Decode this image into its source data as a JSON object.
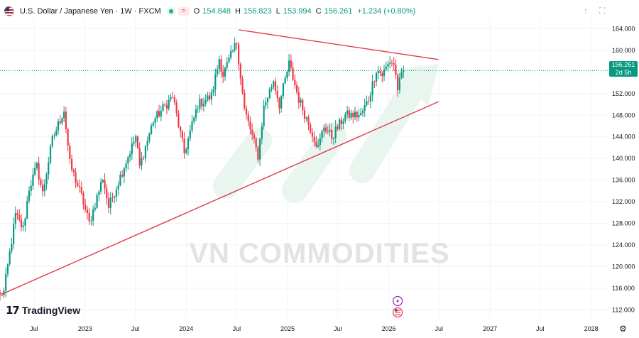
{
  "header": {
    "title": "U.S. Dollar / Japanese Yen · 1W · FXCM",
    "approx_symbol": "≈",
    "open_label": "O",
    "open": "154.848",
    "high_label": "H",
    "high": "156.823",
    "low_label": "L",
    "low": "153.994",
    "close_label": "C",
    "close": "156.261",
    "change": "+1.234 (+0.80%)"
  },
  "price_tag": {
    "price": "156.261",
    "countdown": "2d 5h"
  },
  "watermark": "VN COMMODITIES",
  "logo": {
    "mark": "17",
    "text": "TradingView"
  },
  "colors": {
    "up": "#089981",
    "down": "#f23645",
    "trendline": "#e03a4a",
    "arrow": "#e8f6ef",
    "grid": "#f0f3fa",
    "axis_text": "#131722"
  },
  "icons": {
    "flag": "us-japan-flag-icon",
    "settings": "gear-icon",
    "event1": "lightning-icon",
    "event2": "us-flag-event-icon"
  },
  "chart_data": {
    "type": "candlestick",
    "title": "U.S. Dollar / Japanese Yen · 1W · FXCM",
    "ylim": [
      110.6,
      165.9
    ],
    "yticks": [
      112,
      116,
      120,
      124,
      128,
      132,
      136,
      140,
      144,
      148,
      152,
      156,
      160,
      164
    ],
    "ytick_labels": [
      "112.000",
      "116.000",
      "120.000",
      "124.000",
      "128.000",
      "132.000",
      "136.000",
      "140.000",
      "144.000",
      "148.000",
      "152.000",
      "156.000",
      "160.000",
      "164.000"
    ],
    "x_start": "2022-02-28",
    "x_end": "2028-03-01",
    "xticks": [
      {
        "date": "2022-07-01",
        "label": "Jul"
      },
      {
        "date": "2023-01-01",
        "label": "2023"
      },
      {
        "date": "2023-07-01",
        "label": "Jul"
      },
      {
        "date": "2024-01-01",
        "label": "2024"
      },
      {
        "date": "2024-07-01",
        "label": "Jul"
      },
      {
        "date": "2025-01-01",
        "label": "2025"
      },
      {
        "date": "2025-07-01",
        "label": "Jul"
      },
      {
        "date": "2026-01-01",
        "label": "2026"
      },
      {
        "date": "2026-07-01",
        "label": "Jul"
      },
      {
        "date": "2027-01-01",
        "label": "2027"
      },
      {
        "date": "2027-07-01",
        "label": "Jul"
      },
      {
        "date": "2028-01-01",
        "label": "2028"
      }
    ],
    "path_anchors": [
      {
        "date": "2022-02-28",
        "price": 114.8
      },
      {
        "date": "2022-03-14",
        "price": 115.3
      },
      {
        "date": "2022-04-04",
        "price": 122.5
      },
      {
        "date": "2022-04-25",
        "price": 129.5
      },
      {
        "date": "2022-05-23",
        "price": 127.0
      },
      {
        "date": "2022-06-13",
        "price": 134.5
      },
      {
        "date": "2022-07-11",
        "price": 138.5
      },
      {
        "date": "2022-08-01",
        "price": 133.5
      },
      {
        "date": "2022-09-05",
        "price": 143.5
      },
      {
        "date": "2022-10-17",
        "price": 149.0
      },
      {
        "date": "2022-11-07",
        "price": 139.0
      },
      {
        "date": "2022-12-19",
        "price": 133.0
      },
      {
        "date": "2023-01-16",
        "price": 128.0
      },
      {
        "date": "2023-03-06",
        "price": 136.5
      },
      {
        "date": "2023-03-27",
        "price": 131.0
      },
      {
        "date": "2023-05-29",
        "price": 139.5
      },
      {
        "date": "2023-07-03",
        "price": 144.0
      },
      {
        "date": "2023-07-17",
        "price": 138.5
      },
      {
        "date": "2023-09-04",
        "price": 147.0
      },
      {
        "date": "2023-11-13",
        "price": 151.5
      },
      {
        "date": "2023-12-25",
        "price": 141.0
      },
      {
        "date": "2024-02-12",
        "price": 150.0
      },
      {
        "date": "2024-04-01",
        "price": 151.5
      },
      {
        "date": "2024-04-29",
        "price": 158.5
      },
      {
        "date": "2024-05-13",
        "price": 155.5
      },
      {
        "date": "2024-07-01",
        "price": 161.5
      },
      {
        "date": "2024-07-29",
        "price": 149.0
      },
      {
        "date": "2024-09-16",
        "price": 140.5
      },
      {
        "date": "2024-10-07",
        "price": 149.5
      },
      {
        "date": "2024-11-11",
        "price": 154.5
      },
      {
        "date": "2024-12-02",
        "price": 150.0
      },
      {
        "date": "2025-01-06",
        "price": 157.5
      },
      {
        "date": "2025-02-10",
        "price": 151.0
      },
      {
        "date": "2025-04-21",
        "price": 142.0
      },
      {
        "date": "2025-05-12",
        "price": 146.0
      },
      {
        "date": "2025-06-09",
        "price": 144.0
      },
      {
        "date": "2025-07-28",
        "price": 148.0
      },
      {
        "date": "2025-09-22",
        "price": 148.0
      },
      {
        "date": "2025-10-20",
        "price": 151.0
      },
      {
        "date": "2025-11-17",
        "price": 156.5
      },
      {
        "date": "2025-12-08",
        "price": 155.5
      },
      {
        "date": "2026-01-05",
        "price": 158.0
      },
      {
        "date": "2026-01-19",
        "price": 157.5
      },
      {
        "date": "2026-02-02",
        "price": 153.0
      },
      {
        "date": "2026-02-23",
        "price": 156.3
      }
    ],
    "trendlines": [
      {
        "name": "resistance",
        "from": {
          "date": "2024-07-08",
          "price": 163.8
        },
        "to": {
          "date": "2026-06-29",
          "price": 158.3
        }
      },
      {
        "name": "support",
        "from": {
          "date": "2022-03-07",
          "price": 114.9
        },
        "to": {
          "date": "2026-06-29",
          "price": 150.5
        }
      }
    ],
    "current_price_line": 156.261,
    "annotation": "projected upward arrow"
  }
}
